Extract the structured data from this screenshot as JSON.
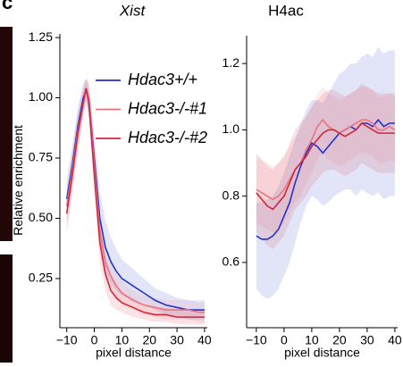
{
  "panel_label": "c",
  "chart_data": [
    {
      "type": "line",
      "title": "Xist",
      "ylabel": "Relative enrichment",
      "xlabel": "pixel distance",
      "xlim": [
        -12.5,
        41
      ],
      "ylim": [
        0.046,
        1.265
      ],
      "xticks": [
        {
          "value": -10,
          "label": "−10"
        },
        0,
        10,
        20,
        30,
        40
      ],
      "yticks": [
        0.25,
        {
          "value": 0.5,
          "label": "0.50"
        },
        0.75,
        {
          "value": 1,
          "label": "1.00"
        },
        1.25
      ],
      "x": [
        -10,
        -8,
        -6,
        -4,
        -3,
        -2,
        0,
        2,
        4,
        6,
        8,
        10,
        14,
        18,
        22,
        26,
        30,
        34,
        38,
        40
      ],
      "series": [
        {
          "name": "Hdac3+/+",
          "color": "#2233c8",
          "values": [
            0.58,
            0.72,
            0.88,
            1.0,
            1.03,
            1.0,
            0.75,
            0.5,
            0.38,
            0.32,
            0.28,
            0.25,
            0.22,
            0.19,
            0.16,
            0.14,
            0.13,
            0.12,
            0.12,
            0.12
          ],
          "upper": [
            0.66,
            0.8,
            0.96,
            1.06,
            1.08,
            1.06,
            0.85,
            0.62,
            0.49,
            0.42,
            0.37,
            0.33,
            0.29,
            0.25,
            0.21,
            0.19,
            0.17,
            0.16,
            0.16,
            0.16
          ],
          "lower": [
            0.5,
            0.64,
            0.8,
            0.94,
            0.98,
            0.94,
            0.65,
            0.4,
            0.28,
            0.23,
            0.2,
            0.18,
            0.16,
            0.14,
            0.12,
            0.1,
            0.09,
            0.08,
            0.08,
            0.08
          ]
        },
        {
          "name": "Hdac3-/-#1",
          "color": "#ec7380",
          "values": [
            0.55,
            0.7,
            0.86,
            0.98,
            1.04,
            1.0,
            0.72,
            0.45,
            0.32,
            0.26,
            0.22,
            0.19,
            0.16,
            0.14,
            0.13,
            0.12,
            0.12,
            0.12,
            0.11,
            0.11
          ],
          "upper": [
            0.63,
            0.78,
            0.94,
            1.04,
            1.08,
            1.06,
            0.8,
            0.53,
            0.39,
            0.32,
            0.27,
            0.24,
            0.2,
            0.18,
            0.17,
            0.16,
            0.16,
            0.16,
            0.15,
            0.15
          ],
          "lower": [
            0.47,
            0.62,
            0.78,
            0.92,
            0.99,
            0.94,
            0.64,
            0.37,
            0.25,
            0.2,
            0.17,
            0.14,
            0.12,
            0.1,
            0.09,
            0.08,
            0.08,
            0.08,
            0.07,
            0.07
          ]
        },
        {
          "name": "Hdac3-/-#2",
          "color": "#d42639",
          "values": [
            0.52,
            0.68,
            0.85,
            0.98,
            1.04,
            0.98,
            0.68,
            0.4,
            0.27,
            0.2,
            0.17,
            0.15,
            0.13,
            0.11,
            0.1,
            0.1,
            0.09,
            0.09,
            0.09,
            0.09
          ],
          "upper": [
            0.6,
            0.76,
            0.93,
            1.04,
            1.08,
            1.04,
            0.76,
            0.48,
            0.34,
            0.26,
            0.22,
            0.19,
            0.17,
            0.14,
            0.13,
            0.13,
            0.12,
            0.12,
            0.12,
            0.12
          ],
          "lower": [
            0.44,
            0.6,
            0.77,
            0.92,
            0.99,
            0.92,
            0.6,
            0.32,
            0.2,
            0.14,
            0.12,
            0.11,
            0.09,
            0.08,
            0.07,
            0.07,
            0.06,
            0.06,
            0.06,
            0.06
          ]
        }
      ]
    },
    {
      "type": "line",
      "title": "H4ac",
      "xlabel": "pixel distance",
      "xlim": [
        -13.5,
        41
      ],
      "ylim": [
        0.403,
        1.284
      ],
      "xticks": [
        {
          "value": -10,
          "label": "−10"
        },
        0,
        10,
        20,
        30,
        40
      ],
      "yticks": [
        0.6,
        0.8,
        {
          "value": 1,
          "label": "1.0"
        },
        1.2
      ],
      "x": [
        -10,
        -8,
        -6,
        -4,
        -2,
        0,
        2,
        4,
        6,
        8,
        10,
        12,
        14,
        16,
        18,
        20,
        22,
        24,
        26,
        28,
        30,
        32,
        34,
        36,
        38,
        40
      ],
      "series": [
        {
          "color": "#2233c8",
          "values": [
            0.68,
            0.67,
            0.67,
            0.68,
            0.7,
            0.74,
            0.78,
            0.84,
            0.89,
            0.93,
            0.96,
            0.95,
            0.93,
            0.95,
            0.97,
            0.99,
            1.0,
            1.01,
            1.0,
            1.02,
            1.02,
            1.01,
            1.03,
            1.01,
            1.02,
            1.02
          ],
          "upper": [
            0.78,
            0.78,
            0.79,
            0.8,
            0.83,
            0.87,
            0.92,
            0.97,
            1.02,
            1.06,
            1.09,
            1.09,
            1.08,
            1.11,
            1.14,
            1.17,
            1.18,
            1.2,
            1.2,
            1.22,
            1.23,
            1.22,
            1.25,
            1.23,
            1.24,
            1.24
          ],
          "lower": [
            0.52,
            0.5,
            0.49,
            0.5,
            0.52,
            0.56,
            0.6,
            0.66,
            0.72,
            0.77,
            0.8,
            0.79,
            0.77,
            0.78,
            0.8,
            0.81,
            0.82,
            0.82,
            0.8,
            0.82,
            0.81,
            0.8,
            0.81,
            0.79,
            0.8,
            0.8
          ]
        },
        {
          "color": "#ec7380",
          "values": [
            0.82,
            0.81,
            0.8,
            0.79,
            0.8,
            0.82,
            0.85,
            0.88,
            0.9,
            0.94,
            0.97,
            1.01,
            1.03,
            1.01,
            1.0,
            0.99,
            1.0,
            1.01,
            1.02,
            1.03,
            1.03,
            1.02,
            1.0,
            1.0,
            1.01,
            1.0
          ],
          "upper": [
            0.92,
            0.91,
            0.9,
            0.89,
            0.9,
            0.92,
            0.95,
            0.98,
            1.0,
            1.04,
            1.07,
            1.11,
            1.13,
            1.11,
            1.1,
            1.09,
            1.1,
            1.11,
            1.12,
            1.13,
            1.13,
            1.12,
            1.1,
            1.1,
            1.11,
            1.1
          ],
          "lower": [
            0.72,
            0.71,
            0.7,
            0.69,
            0.7,
            0.72,
            0.75,
            0.78,
            0.8,
            0.84,
            0.87,
            0.91,
            0.93,
            0.91,
            0.9,
            0.89,
            0.9,
            0.91,
            0.92,
            0.93,
            0.93,
            0.92,
            0.9,
            0.9,
            0.91,
            0.9
          ]
        },
        {
          "color": "#d42639",
          "values": [
            0.81,
            0.79,
            0.77,
            0.76,
            0.78,
            0.8,
            0.84,
            0.88,
            0.9,
            0.92,
            0.95,
            0.97,
            0.99,
            1.0,
            1.0,
            0.99,
            0.98,
            0.99,
            1.0,
            1.02,
            1.01,
            1.0,
            0.99,
            0.99,
            0.99,
            0.99
          ],
          "upper": [
            0.93,
            0.91,
            0.89,
            0.88,
            0.9,
            0.92,
            0.96,
            1.0,
            1.02,
            1.04,
            1.07,
            1.09,
            1.11,
            1.12,
            1.12,
            1.11,
            1.1,
            1.11,
            1.12,
            1.14,
            1.13,
            1.12,
            1.11,
            1.11,
            1.11,
            1.11
          ],
          "lower": [
            0.69,
            0.67,
            0.65,
            0.64,
            0.66,
            0.68,
            0.72,
            0.76,
            0.78,
            0.8,
            0.83,
            0.85,
            0.87,
            0.88,
            0.88,
            0.87,
            0.86,
            0.87,
            0.88,
            0.9,
            0.89,
            0.88,
            0.87,
            0.87,
            0.87,
            0.87
          ]
        }
      ]
    }
  ]
}
